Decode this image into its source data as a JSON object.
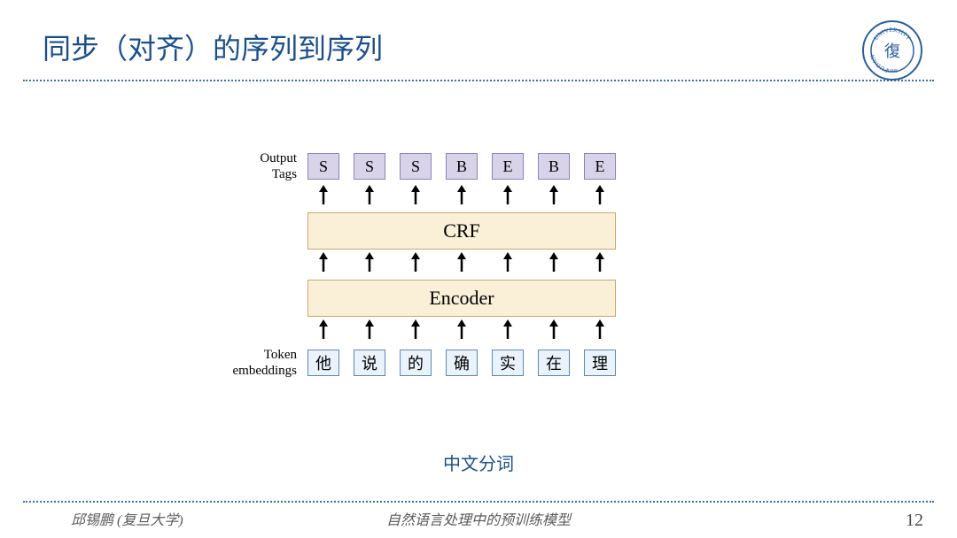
{
  "colors": {
    "title": "#1b4f8c",
    "dotted": "#3d6fa5",
    "mid_text": "#1b4f8c",
    "footer": "#5a5a5a",
    "pagenum": "#4a4a4a",
    "logo_ring": "#2a5f9e",
    "tag_fill": "#d8d3e8",
    "tag_border": "#8c82b8",
    "tok_fill": "#eaf2fb",
    "tok_border": "#5a88b8",
    "big_fill": "#faf0d8",
    "big_border": "#c7a86b",
    "arrow": "#000000"
  },
  "title": "同步（对齐）的序列到序列",
  "logo": {
    "top": "UNIVERSITY",
    "left": "FUDAN",
    "year": "1905"
  },
  "labels": {
    "output_tags": "Output\nTags",
    "token_emb": "Token\nembeddings",
    "crf": "CRF",
    "encoder": "Encoder"
  },
  "tags": [
    "S",
    "S",
    "S",
    "B",
    "E",
    "B",
    "E"
  ],
  "tokens": [
    "他",
    "说",
    "的",
    "确",
    "实",
    "在",
    "理"
  ],
  "caption": "中文分词",
  "footer_left": "邱锡鹏 (复旦大学)",
  "footer_center": "自然语言处理中的预训练模型",
  "page": "12",
  "sizes": {
    "title_fs": 32,
    "sidelabel_fs": 15,
    "box_fs": 18,
    "bigbox_fs": 22,
    "caption_fs": 20,
    "footer_fs": 16,
    "page_fs": 20,
    "arrow_h": 22
  }
}
